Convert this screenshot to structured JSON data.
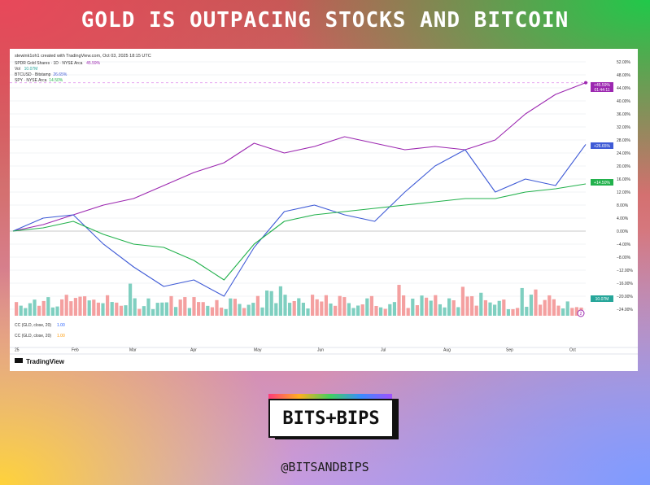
{
  "headline": "GOLD IS OUTPACING STOCKS AND BITCOIN",
  "brand": {
    "logo_text": "BITS+BIPS",
    "handle": "@BITSANDBIPS"
  },
  "colors": {
    "gold": "#9c27b0",
    "btc": "#3f5bd6",
    "spy": "#22b14c",
    "vol_up": "#7fcfc0",
    "vol_down": "#f4a0a0"
  },
  "tradingview": {
    "header": "stewink1oh1 created with TradingView.com, Oct 03, 2025 18:15 UTC",
    "legend": [
      {
        "label": "SPDR Gold Shares · 1D · NYSE Arca",
        "value": "45.59%",
        "color": "#9c27b0"
      },
      {
        "label": "Vol",
        "value": "10.07M",
        "color": "#26a69a"
      },
      {
        "label": "BTCUSD · Bitstamp",
        "value": "26.65%",
        "color": "#3f5bd6"
      },
      {
        "label": "SPY · NYSE Arca",
        "value": "14.50%",
        "color": "#22b14c"
      }
    ],
    "indicator1": {
      "label": "CC (GLD, close, 20)",
      "value": "1.00",
      "color": "#2962ff"
    },
    "indicator2": {
      "label": "CC (GLD, close, 20)",
      "value": "1.00",
      "color": "#ff9800"
    },
    "brand": "TradingView",
    "tag_gold": [
      "+45.59%",
      "01:44:11"
    ],
    "tag_btc": "+26.65%",
    "tag_spy": "+14.50%",
    "tag_vol": "10.07M",
    "bottom_marker": "2"
  },
  "chart_data": {
    "type": "line",
    "xlabel": "",
    "ylabel": "",
    "x_ticks": [
      "25",
      "Feb",
      "Mar",
      "Apr",
      "May",
      "Jun",
      "Jul",
      "Aug",
      "Sep",
      "Oct"
    ],
    "y_ticks": [
      "52.00%",
      "48.00%",
      "44.00%",
      "40.00%",
      "36.00%",
      "32.00%",
      "28.00%",
      "24.00%",
      "20.00%",
      "16.00%",
      "12.00%",
      "8.00%",
      "4.00%",
      "0.00%",
      "−4.00%",
      "−8.00%",
      "−12.00%",
      "−16.00%",
      "−20.00%",
      "−24.00%"
    ],
    "ylim": [
      -26,
      52
    ],
    "x": [
      "2025-01-02",
      "2025-01-15",
      "2025-02-01",
      "2025-02-15",
      "2025-03-01",
      "2025-03-15",
      "2025-04-01",
      "2025-04-15",
      "2025-05-01",
      "2025-05-15",
      "2025-06-01",
      "2025-06-15",
      "2025-07-01",
      "2025-07-15",
      "2025-08-01",
      "2025-08-15",
      "2025-09-01",
      "2025-09-15",
      "2025-10-01",
      "2025-10-03"
    ],
    "series": [
      {
        "name": "SPDR Gold Shares",
        "values": [
          0,
          2,
          5,
          8,
          10,
          14,
          18,
          21,
          27,
          24,
          26,
          29,
          27,
          25,
          26,
          25,
          28,
          36,
          42,
          45.59
        ]
      },
      {
        "name": "BTCUSD",
        "values": [
          0,
          4,
          5,
          -4,
          -11,
          -17,
          -15,
          -20,
          -5,
          6,
          8,
          5,
          3,
          12,
          20,
          25,
          12,
          16,
          14,
          26.65
        ]
      },
      {
        "name": "SPY",
        "values": [
          0,
          1,
          3,
          -1,
          -4,
          -5,
          -9,
          -15,
          -4,
          3,
          5,
          6,
          7,
          8,
          9,
          10,
          10,
          12,
          13,
          14.5
        ]
      }
    ]
  }
}
